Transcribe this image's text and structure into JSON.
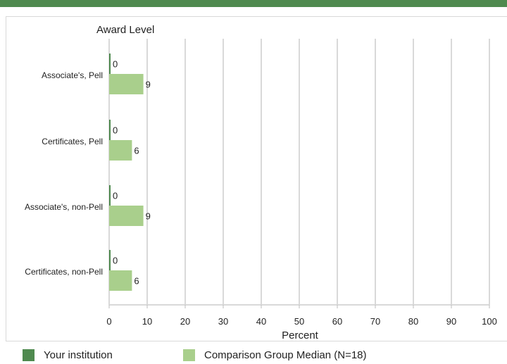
{
  "chart_data": {
    "type": "bar",
    "orientation": "horizontal",
    "title": "Award Level",
    "xlabel": "Percent",
    "ylabel": "",
    "xlim": [
      0,
      100
    ],
    "x_ticks": [
      "0",
      "10",
      "20",
      "30",
      "40",
      "50",
      "60",
      "70",
      "80",
      "90",
      "100"
    ],
    "grid": true,
    "categories": [
      "Associate's, Pell",
      "Certificates, Pell",
      "Associate's, non-Pell",
      "Certificates, non-Pell"
    ],
    "series": [
      {
        "name": "Your institution",
        "color": "#4f8a4f",
        "values": [
          0,
          0,
          0,
          0
        ],
        "labels": [
          "0",
          "0",
          "0",
          "0"
        ]
      },
      {
        "name": "Comparison Group Median (N=18)",
        "color": "#a9cf8c",
        "values": [
          9,
          6,
          9,
          6
        ],
        "labels": [
          "9",
          "6",
          "9",
          "6"
        ]
      }
    ],
    "legend_position": "bottom"
  },
  "legend": {
    "items": [
      {
        "label": "Your institution",
        "color": "#4f8a4f"
      },
      {
        "label": "Comparison Group Median (N=18)",
        "color": "#a9cf8c"
      }
    ]
  },
  "colors": {
    "accent": "#4f8a4f",
    "grid": "#d9d9d9"
  }
}
